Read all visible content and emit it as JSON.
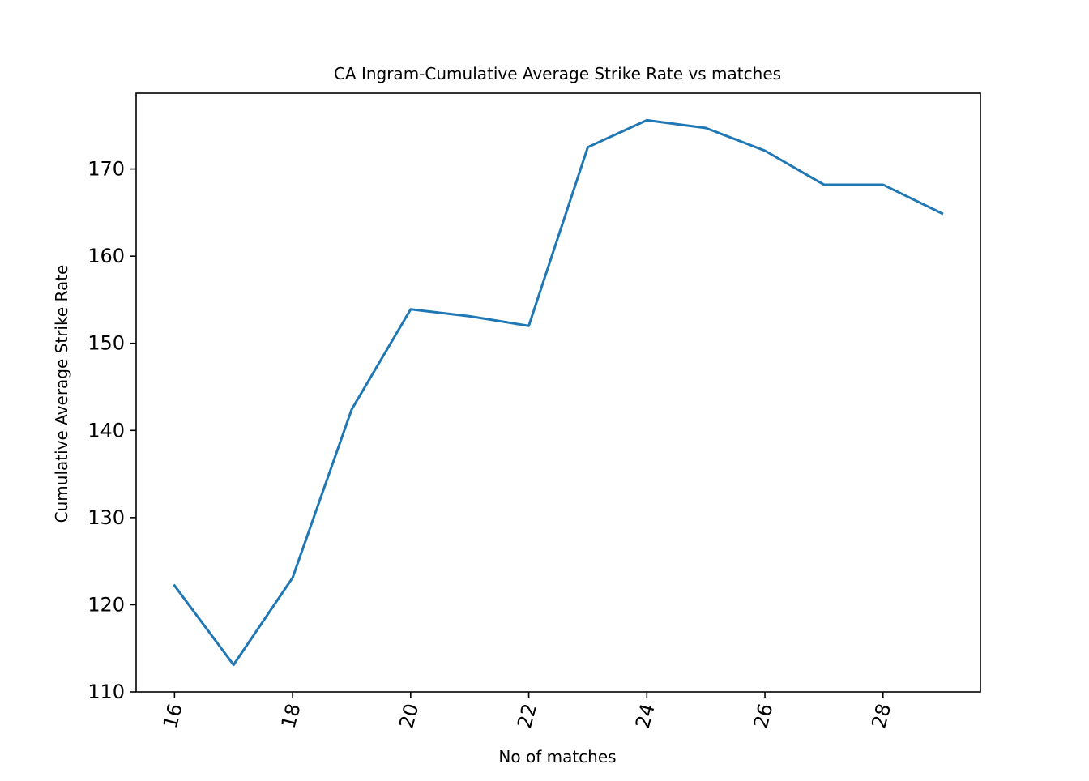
{
  "chart_data": {
    "type": "line",
    "title": "CA Ingram-Cumulative Average Strike Rate vs matches",
    "xlabel": "No of matches",
    "ylabel": "Cumulative Average Strike Rate",
    "xlim": [
      15.35,
      29.65
    ],
    "ylim": [
      110,
      178.7
    ],
    "x_ticks": [
      16,
      18,
      20,
      22,
      24,
      26,
      28
    ],
    "x_tick_labels": [
      "16",
      "18",
      "20",
      "22",
      "24",
      "26",
      "28"
    ],
    "x_tick_rotation": "-75deg",
    "y_ticks": [
      110,
      120,
      130,
      140,
      150,
      160,
      170
    ],
    "y_tick_labels": [
      "110",
      "120",
      "130",
      "140",
      "150",
      "160",
      "170"
    ],
    "grid": false,
    "legend": "none",
    "series": [
      {
        "color": "#1f77b4",
        "x": [
          16,
          17,
          18,
          19,
          20,
          21,
          22,
          23,
          24,
          25,
          26,
          27,
          28,
          29
        ],
        "y": [
          122.2,
          113.1,
          123.1,
          142.4,
          153.9,
          153.1,
          152.0,
          172.5,
          175.6,
          174.7,
          172.1,
          168.2,
          168.2,
          164.9
        ]
      }
    ]
  }
}
